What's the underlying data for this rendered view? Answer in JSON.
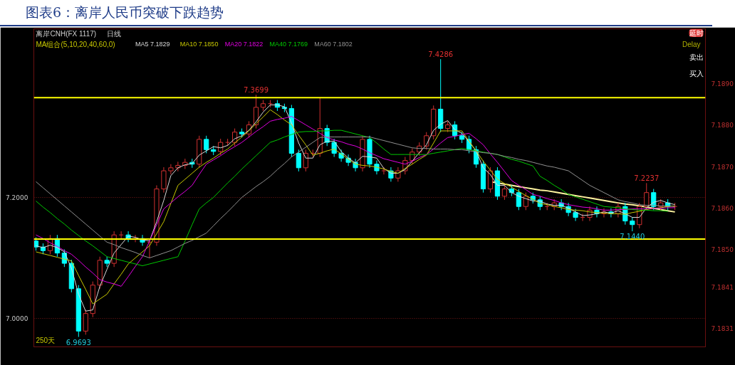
{
  "chart_data": {
    "type": "candlestick",
    "title": "图表6：离岸人民币突破下跌趋势",
    "categories": [
      null,
      null,
      null,
      null,
      null,
      null,
      null,
      null,
      null,
      null,
      null,
      null,
      null,
      null,
      null,
      null,
      null,
      null,
      null,
      null,
      null,
      null,
      null,
      null,
      null,
      null,
      null,
      null,
      null,
      null,
      null,
      null,
      null,
      null,
      null,
      null,
      null,
      null,
      null,
      null,
      null,
      null,
      null,
      null,
      null,
      null,
      null,
      null,
      null,
      null,
      null,
      null,
      null,
      null,
      null,
      null,
      null,
      null,
      null,
      null,
      null,
      null,
      null,
      null,
      null,
      null,
      null,
      null,
      null,
      null,
      null,
      null,
      null,
      null,
      null,
      null,
      null,
      null,
      null,
      null,
      null,
      null,
      null,
      null,
      null,
      null,
      null,
      null,
      null,
      null,
      null
    ],
    "ohlc": [
      [
        7.128,
        7.134,
        7.112,
        7.118
      ],
      [
        7.118,
        7.124,
        7.106,
        7.112
      ],
      [
        7.112,
        7.138,
        7.106,
        7.132
      ],
      [
        7.132,
        7.138,
        7.102,
        7.108
      ],
      [
        7.108,
        7.114,
        7.085,
        7.091
      ],
      [
        7.091,
        7.097,
        7.043,
        7.049
      ],
      [
        7.049,
        7.055,
        6.9693,
        6.979
      ],
      [
        6.979,
        7.014,
        6.973,
        7.008
      ],
      [
        7.008,
        7.061,
        7.002,
        7.055
      ],
      [
        7.055,
        7.102,
        7.049,
        7.096
      ],
      [
        7.096,
        7.102,
        7.085,
        7.091
      ],
      [
        7.091,
        7.144,
        7.085,
        7.138
      ],
      [
        7.138,
        7.144,
        7.132,
        7.138
      ],
      [
        7.138,
        7.144,
        7.126,
        7.132
      ],
      [
        7.132,
        7.138,
        7.126,
        7.132
      ],
      [
        7.132,
        7.138,
        7.12,
        7.126
      ],
      [
        7.126,
        7.132,
        7.1,
        7.126
      ],
      [
        7.126,
        7.22,
        7.12,
        7.214
      ],
      [
        7.214,
        7.25,
        7.208,
        7.244
      ],
      [
        7.244,
        7.255,
        7.238,
        7.249
      ],
      [
        7.249,
        7.259,
        7.243,
        7.253
      ],
      [
        7.253,
        7.264,
        7.247,
        7.258
      ],
      [
        7.258,
        7.264,
        7.249,
        7.255
      ],
      [
        7.255,
        7.302,
        7.249,
        7.296
      ],
      [
        7.296,
        7.302,
        7.273,
        7.279
      ],
      [
        7.279,
        7.285,
        7.27,
        7.276
      ],
      [
        7.276,
        7.297,
        7.27,
        7.291
      ],
      [
        7.291,
        7.297,
        7.285,
        7.291
      ],
      [
        7.291,
        7.314,
        7.285,
        7.308
      ],
      [
        7.308,
        7.314,
        7.299,
        7.305
      ],
      [
        7.305,
        7.326,
        7.299,
        7.32
      ],
      [
        7.32,
        7.3699,
        7.314,
        7.349
      ],
      [
        7.349,
        7.361,
        7.343,
        7.355
      ],
      [
        7.355,
        7.361,
        7.349,
        7.355
      ],
      [
        7.355,
        7.361,
        7.343,
        7.349
      ],
      [
        7.349,
        7.355,
        7.341,
        7.347
      ],
      [
        7.347,
        7.353,
        7.267,
        7.273
      ],
      [
        7.273,
        7.279,
        7.243,
        7.249
      ],
      [
        7.249,
        7.279,
        7.243,
        7.273
      ],
      [
        7.273,
        7.279,
        7.267,
        7.273
      ],
      [
        7.273,
        7.365,
        7.267,
        7.314
      ],
      [
        7.314,
        7.32,
        7.285,
        7.291
      ],
      [
        7.291,
        7.297,
        7.267,
        7.273
      ],
      [
        7.273,
        7.279,
        7.259,
        7.265
      ],
      [
        7.265,
        7.271,
        7.252,
        7.258
      ],
      [
        7.258,
        7.264,
        7.243,
        7.249
      ],
      [
        7.249,
        7.302,
        7.243,
        7.296
      ],
      [
        7.296,
        7.302,
        7.249,
        7.255
      ],
      [
        7.255,
        7.261,
        7.238,
        7.244
      ],
      [
        7.244,
        7.25,
        7.238,
        7.244
      ],
      [
        7.244,
        7.25,
        7.226,
        7.232
      ],
      [
        7.232,
        7.25,
        7.226,
        7.244
      ],
      [
        7.244,
        7.267,
        7.238,
        7.261
      ],
      [
        7.261,
        7.281,
        7.255,
        7.275
      ],
      [
        7.275,
        7.291,
        7.269,
        7.285
      ],
      [
        7.285,
        7.308,
        7.279,
        7.302
      ],
      [
        7.302,
        7.352,
        7.296,
        7.346
      ],
      [
        7.346,
        7.4286,
        7.308,
        7.314
      ],
      [
        7.314,
        7.326,
        7.308,
        7.32
      ],
      [
        7.32,
        7.326,
        7.296,
        7.302
      ],
      [
        7.302,
        7.308,
        7.29,
        7.296
      ],
      [
        7.296,
        7.302,
        7.273,
        7.279
      ],
      [
        7.279,
        7.285,
        7.249,
        7.255
      ],
      [
        7.255,
        7.261,
        7.208,
        7.214
      ],
      [
        7.214,
        7.25,
        7.208,
        7.244
      ],
      [
        7.244,
        7.25,
        7.196,
        7.202
      ],
      [
        7.202,
        7.22,
        7.196,
        7.214
      ],
      [
        7.214,
        7.22,
        7.202,
        7.208
      ],
      [
        7.208,
        7.214,
        7.179,
        7.185
      ],
      [
        7.185,
        7.208,
        7.179,
        7.202
      ],
      [
        7.202,
        7.208,
        7.19,
        7.196
      ],
      [
        7.196,
        7.202,
        7.179,
        7.185
      ],
      [
        7.185,
        7.191,
        7.179,
        7.185
      ],
      [
        7.185,
        7.197,
        7.179,
        7.191
      ],
      [
        7.191,
        7.197,
        7.179,
        7.185
      ],
      [
        7.185,
        7.191,
        7.169,
        7.175
      ],
      [
        7.175,
        7.181,
        7.161,
        7.167
      ],
      [
        7.167,
        7.173,
        7.161,
        7.167
      ],
      [
        7.167,
        7.185,
        7.161,
        7.179
      ],
      [
        7.179,
        7.185,
        7.167,
        7.173
      ],
      [
        7.173,
        7.182,
        7.167,
        7.176
      ],
      [
        7.176,
        7.182,
        7.167,
        7.173
      ],
      [
        7.173,
        7.191,
        7.167,
        7.185
      ],
      [
        7.185,
        7.191,
        7.155,
        7.161
      ],
      [
        7.161,
        7.167,
        7.144,
        7.155
      ],
      [
        7.155,
        7.191,
        7.149,
        7.185
      ],
      [
        7.185,
        7.2237,
        7.179,
        7.208
      ],
      [
        7.208,
        7.214,
        7.179,
        7.185
      ],
      [
        7.185,
        7.197,
        7.179,
        7.191
      ],
      [
        7.191,
        7.197,
        7.179,
        7.185
      ],
      [
        7.185,
        7.191,
        7.179,
        7.185
      ]
    ],
    "colors": [
      "#00ffff",
      "#00ffff",
      "#d03030",
      "#00ffff",
      "#00ffff",
      "#00ffff",
      "#00ffff",
      "#d03030",
      "#d03030",
      "#d03030",
      "#00ffff",
      "#d03030",
      "#d03030",
      "#00ffff",
      "#d03030",
      "#00ffff",
      "#d03030",
      "#d03030",
      "#d03030",
      "#d03030",
      "#d03030",
      "#d03030",
      "#00ffff",
      "#d03030",
      "#00ffff",
      "#00ffff",
      "#d03030",
      "#d03030",
      "#d03030",
      "#00ffff",
      "#d03030",
      "#d03030",
      "#d03030",
      "#d03030",
      "#00ffff",
      "#00ffff",
      "#00ffff",
      "#00ffff",
      "#d03030",
      "#d03030",
      "#d03030",
      "#00ffff",
      "#00ffff",
      "#00ffff",
      "#00ffff",
      "#00ffff",
      "#d03030",
      "#00ffff",
      "#00ffff",
      "#d03030",
      "#00ffff",
      "#d03030",
      "#d03030",
      "#d03030",
      "#d03030",
      "#d03030",
      "#d03030",
      "#00ffff",
      "#d03030",
      "#00ffff",
      "#00ffff",
      "#00ffff",
      "#00ffff",
      "#00ffff",
      "#d03030",
      "#00ffff",
      "#d03030",
      "#00ffff",
      "#00ffff",
      "#d03030",
      "#00ffff",
      "#00ffff",
      "#d03030",
      "#d03030",
      "#00ffff",
      "#00ffff",
      "#00ffff",
      "#d03030",
      "#d03030",
      "#00ffff",
      "#d03030",
      "#00ffff",
      "#d03030",
      "#00ffff",
      "#00ffff",
      "#d03030",
      "#d03030",
      "#00ffff",
      "#d03030",
      "#00ffff",
      "#d03030"
    ],
    "series": [
      {
        "type": "line",
        "name": "MA5 7.1829",
        "color": "#d8d8d8",
        "values": [
          7.12,
          7.117,
          7.121,
          7.117,
          7.11,
          7.083,
          7.04,
          7.012,
          7.014,
          7.053,
          7.081,
          7.108,
          7.122,
          7.136,
          7.134,
          7.13,
          7.128,
          7.16,
          7.195,
          7.236,
          7.249,
          7.254,
          7.256,
          7.27,
          7.277,
          7.284,
          7.282,
          7.286,
          7.297,
          7.302,
          7.311,
          7.325,
          7.341,
          7.353,
          7.353,
          7.35,
          7.323,
          7.29,
          7.265,
          7.265,
          7.287,
          7.293,
          7.293,
          7.276,
          7.265,
          7.257,
          7.268,
          7.267,
          7.265,
          7.248,
          7.24,
          7.24,
          7.246,
          7.26,
          7.274,
          7.287,
          7.311,
          7.321,
          7.327,
          7.312,
          7.306,
          7.292,
          7.277,
          7.249,
          7.238,
          7.22,
          7.22,
          7.208,
          7.202,
          7.198,
          7.194,
          7.194,
          7.189,
          7.187,
          7.187,
          7.182,
          7.176,
          7.17,
          7.171,
          7.173,
          7.176,
          7.174,
          7.178,
          7.173,
          7.167,
          7.167,
          7.183,
          7.192,
          7.195,
          7.191,
          7.188
        ]
      },
      {
        "type": "line",
        "name": "MA10 7.1850",
        "color": "#c8c800",
        "values": [
          7.11,
          7.107,
          7.104,
          7.101,
          7.098,
          7.095,
          7.071,
          7.048,
          7.024,
          7.032,
          7.04,
          7.057,
          7.073,
          7.09,
          7.1,
          7.11,
          7.12,
          7.14,
          7.16,
          7.19,
          7.22,
          7.23,
          7.24,
          7.25,
          7.258,
          7.265,
          7.273,
          7.28,
          7.29,
          7.3,
          7.31,
          7.322,
          7.333,
          7.345,
          7.337,
          7.328,
          7.32,
          7.303,
          7.287,
          7.27,
          7.273,
          7.277,
          7.28,
          7.272,
          7.263,
          7.255,
          7.253,
          7.252,
          7.25,
          7.247,
          7.243,
          7.24,
          7.248,
          7.255,
          7.263,
          7.27,
          7.29,
          7.31,
          7.31,
          7.31,
          7.31,
          7.293,
          7.277,
          7.26,
          7.245,
          7.23,
          7.223,
          7.217,
          7.21,
          7.203,
          7.197,
          7.19,
          7.188,
          7.185,
          7.183,
          7.18,
          7.179,
          7.178,
          7.176,
          7.175,
          7.174,
          7.173,
          7.173,
          7.172,
          7.175,
          7.177,
          7.18,
          7.182,
          7.183,
          7.185,
          7.186
        ]
      },
      {
        "type": "line",
        "name": "MA20 7.1822",
        "color": "#e000e0",
        "values": [
          7.138,
          7.132,
          7.125,
          7.119,
          7.112,
          7.106,
          7.096,
          7.085,
          7.075,
          7.064,
          7.06,
          7.057,
          7.053,
          7.069,
          7.086,
          7.102,
          7.128,
          7.155,
          7.181,
          7.191,
          7.201,
          7.21,
          7.22,
          7.238,
          7.255,
          7.262,
          7.269,
          7.277,
          7.284,
          7.291,
          7.3,
          7.309,
          7.317,
          7.326,
          7.329,
          7.331,
          7.334,
          7.327,
          7.32,
          7.313,
          7.306,
          7.299,
          7.295,
          7.292,
          7.288,
          7.285,
          7.28,
          7.274,
          7.269,
          7.264,
          7.261,
          7.258,
          7.255,
          7.26,
          7.266,
          7.271,
          7.28,
          7.29,
          7.299,
          7.301,
          7.304,
          7.306,
          7.297,
          7.287,
          7.272,
          7.258,
          7.243,
          7.228,
          7.22,
          7.213,
          7.205,
          7.202,
          7.198,
          7.195,
          7.191,
          7.188,
          7.186,
          7.184,
          7.183,
          7.181,
          7.179,
          7.179,
          7.18,
          7.18,
          7.181,
          7.181,
          7.181,
          7.182,
          7.182,
          7.183,
          7.183
        ]
      },
      {
        "type": "line",
        "name": "MA40 7.1769",
        "color": "#00c800",
        "values": [
          7.194,
          7.184,
          7.175,
          7.165,
          7.156,
          7.146,
          7.137,
          7.128,
          7.12,
          7.111,
          7.102,
          7.099,
          7.096,
          7.093,
          7.09,
          7.087,
          7.09,
          7.093,
          7.096,
          7.099,
          7.102,
          7.128,
          7.155,
          7.181,
          7.191,
          7.2,
          7.212,
          7.224,
          7.235,
          7.247,
          7.258,
          7.269,
          7.28,
          7.291,
          7.295,
          7.3,
          7.304,
          7.308,
          7.309,
          7.309,
          7.31,
          7.31,
          7.311,
          7.311,
          7.308,
          7.305,
          7.302,
          7.299,
          7.29,
          7.28,
          7.271,
          7.271,
          7.271,
          7.271,
          7.271,
          7.271,
          7.273,
          7.275,
          7.277,
          7.279,
          7.281,
          7.279,
          7.277,
          7.275,
          7.273,
          7.271,
          7.267,
          7.263,
          7.26,
          7.256,
          7.252,
          7.235,
          7.228,
          7.22,
          7.213,
          7.205,
          7.201,
          7.197,
          7.193,
          7.189,
          7.185,
          7.184,
          7.183,
          7.181,
          7.18,
          7.179,
          7.179,
          7.178,
          7.178,
          7.177,
          null
        ]
      },
      {
        "type": "line",
        "name": "MA60 7.1802",
        "color": "#909090",
        "values": [
          7.226,
          7.216,
          7.206,
          7.196,
          7.186,
          7.176,
          7.166,
          7.156,
          7.146,
          7.136,
          7.126,
          7.122,
          7.117,
          7.113,
          7.109,
          7.104,
          7.1,
          7.104,
          7.108,
          7.112,
          7.118,
          7.124,
          7.129,
          7.135,
          7.141,
          7.153,
          7.165,
          7.176,
          7.188,
          7.2,
          7.209,
          7.218,
          7.226,
          7.235,
          7.246,
          7.256,
          7.267,
          7.275,
          7.283,
          7.291,
          7.299,
          7.3,
          7.3,
          7.3,
          7.3,
          7.3,
          7.3,
          7.3,
          7.297,
          7.294,
          7.291,
          7.288,
          7.285,
          7.282,
          7.281,
          7.281,
          7.28,
          7.28,
          7.28,
          7.279,
          7.279,
          7.277,
          7.276,
          7.274,
          7.273,
          7.271,
          7.268,
          7.266,
          7.263,
          7.261,
          7.258,
          7.255,
          7.252,
          7.25,
          7.247,
          7.244,
          7.236,
          7.228,
          7.22,
          7.214,
          7.208,
          7.202,
          7.196,
          7.193,
          7.191,
          7.188,
          7.187,
          7.187,
          7.186,
          7.186,
          7.185
        ]
      },
      {
        "type": "line",
        "color": "#fff5a0",
        "values": [
          null,
          null,
          null,
          null,
          null,
          null,
          null,
          null,
          null,
          null,
          null,
          null,
          null,
          null,
          null,
          null,
          null,
          null,
          null,
          null,
          null,
          null,
          null,
          null,
          null,
          null,
          null,
          null,
          null,
          null,
          null,
          null,
          null,
          null,
          null,
          null,
          null,
          null,
          null,
          null,
          null,
          null,
          null,
          null,
          null,
          null,
          null,
          null,
          null,
          null,
          null,
          null,
          null,
          null,
          null,
          null,
          null,
          null,
          null,
          null,
          null,
          null,
          null,
          null,
          7.226,
          7.224,
          7.222,
          7.22,
          7.218,
          7.216,
          7.214,
          7.212,
          7.211,
          7.209,
          7.207,
          7.205,
          7.203,
          7.201,
          7.199,
          7.197,
          7.195,
          7.193,
          7.191,
          7.189,
          7.188,
          7.186,
          7.184,
          7.182,
          7.18,
          7.178,
          7.176
        ]
      }
    ],
    "ylim": [
      6.9529,
      7.4788
    ],
    "yticks": [
      {
        "value": 7.2,
        "label": "7.2000"
      },
      {
        "value": 7.0,
        "label": "7.0000"
      }
    ],
    "y2lim": [
      7.18266,
      7.19032
    ],
    "y2ticks": [
      {
        "value": 7.189,
        "label": "7.1890"
      },
      {
        "value": 7.188,
        "label": "7.1880"
      },
      {
        "value": 7.187,
        "label": "7.1870"
      },
      {
        "value": 7.186,
        "label": "7.1860"
      },
      {
        "value": 7.185,
        "label": "7.1850"
      },
      {
        "value": 7.1841,
        "label": "7.1841"
      },
      {
        "value": 7.1831,
        "label": "7.1831"
      }
    ],
    "tick_labels": "y",
    "grid": "y",
    "ref_lines": [
      {
        "axis": "y",
        "value": 7.365,
        "color": "#ffff00"
      },
      {
        "axis": "y",
        "value": 7.131,
        "color": "#ffff00"
      }
    ],
    "annotations": [
      {
        "text": "7.4286",
        "y": 7.4286
      },
      {
        "text": "7.3699",
        "y": 7.3699
      },
      {
        "text": "7.2237",
        "y": 7.2237
      },
      {
        "text": "7.1440",
        "y": 7.144
      },
      {
        "text": "6.9693",
        "y": 6.9693
      },
      "离岸CNH(FX 1117)",
      "日线",
      "MA组合(5,10,20,40,60,0)",
      "Delay",
      "延时",
      "卖出",
      "买入",
      "250天"
    ]
  }
}
